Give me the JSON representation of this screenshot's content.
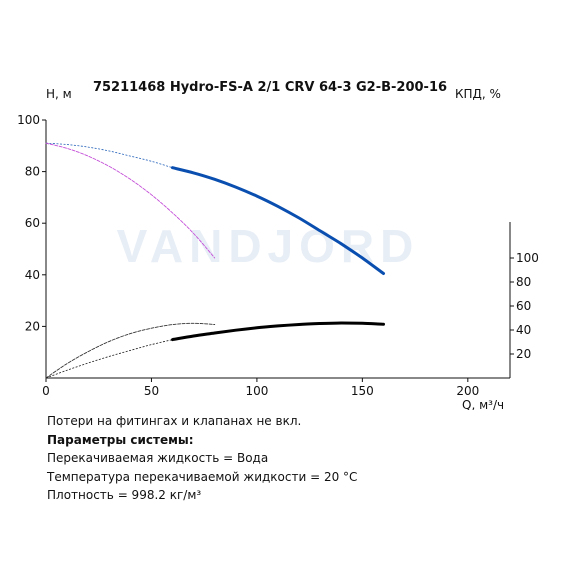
{
  "chart_data": {
    "type": "line",
    "title": "75211468 Hydro-FS-A 2/1 CRV 64-3 G2-B-200-16",
    "ylabel": "H, м",
    "y2label": "КПД, %",
    "xlabel": "Q, м³/ч",
    "watermark": "VANDJORD",
    "xlim": [
      0,
      220
    ],
    "ylim": [
      0,
      100
    ],
    "y2lim": [
      0,
      120
    ],
    "x_ticks": [
      0,
      50,
      100,
      150,
      200
    ],
    "y_ticks": [
      20,
      40,
      60,
      80,
      100
    ],
    "y2_ticks": [
      20,
      40,
      60,
      80,
      100
    ],
    "grid": false,
    "series": [
      {
        "axis": "left",
        "color": "#0a4fb0",
        "style": "thick",
        "points": [
          [
            60,
            81.5
          ],
          [
            70,
            79.5
          ],
          [
            80,
            77
          ],
          [
            90,
            74
          ],
          [
            100,
            70.5
          ],
          [
            110,
            66.5
          ],
          [
            120,
            62
          ],
          [
            130,
            57
          ],
          [
            140,
            52
          ],
          [
            150,
            46.5
          ],
          [
            160,
            40.5
          ]
        ],
        "extension": [
          [
            0,
            91
          ],
          [
            10,
            90.5
          ],
          [
            20,
            89.5
          ],
          [
            30,
            88
          ],
          [
            40,
            86
          ],
          [
            50,
            84
          ],
          [
            60,
            81.5
          ]
        ]
      },
      {
        "axis": "left",
        "color": "#c44fd8",
        "style": "thin",
        "points": [
          [
            0,
            91
          ],
          [
            10,
            89
          ],
          [
            20,
            86
          ],
          [
            30,
            82
          ],
          [
            40,
            77
          ],
          [
            50,
            71
          ],
          [
            60,
            64
          ],
          [
            70,
            56
          ],
          [
            80,
            46.5
          ]
        ]
      },
      {
        "axis": "right",
        "color": "#000000",
        "style": "thick",
        "points": [
          [
            60,
            32
          ],
          [
            70,
            35
          ],
          [
            80,
            37.5
          ],
          [
            90,
            39.8
          ],
          [
            100,
            41.8
          ],
          [
            110,
            43.4
          ],
          [
            120,
            44.6
          ],
          [
            130,
            45.4
          ],
          [
            140,
            45.8
          ],
          [
            150,
            45.6
          ],
          [
            160,
            44.8
          ]
        ],
        "extension": [
          [
            0,
            0
          ],
          [
            10,
            6.5
          ],
          [
            20,
            12.5
          ],
          [
            30,
            18
          ],
          [
            40,
            23
          ],
          [
            50,
            27.8
          ],
          [
            60,
            32
          ]
        ]
      },
      {
        "axis": "right",
        "color": "#333333",
        "style": "thin",
        "points": [
          [
            0,
            0
          ],
          [
            10,
            12
          ],
          [
            20,
            22
          ],
          [
            30,
            30.5
          ],
          [
            40,
            37
          ],
          [
            50,
            41.5
          ],
          [
            60,
            44.5
          ],
          [
            70,
            45.6
          ],
          [
            80,
            44.6
          ]
        ]
      }
    ]
  },
  "notes": {
    "line1": "Потери на фитингах и клапанах не вкл.",
    "heading": "Параметры системы:",
    "line2": "Перекачиваемая жидкость = Вода",
    "line3": "Температура перекачиваемой жидкости = 20 °C",
    "line4": "Плотность = 998.2 кг/м³"
  }
}
